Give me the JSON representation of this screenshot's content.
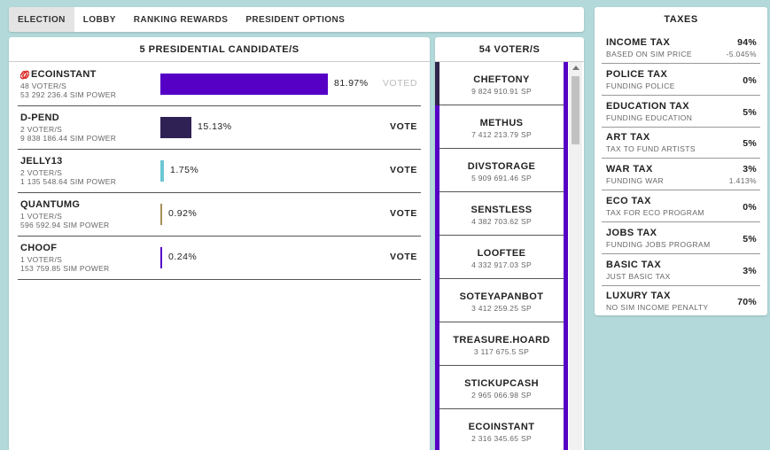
{
  "tabs": [
    {
      "label": "ELECTION",
      "active": true
    },
    {
      "label": "LOBBY",
      "active": false
    },
    {
      "label": "RANKING REWARDS",
      "active": false
    },
    {
      "label": "PRESIDENT OPTIONS",
      "active": false
    }
  ],
  "candidates": {
    "header": "5 PRESIDENTIAL CANDIDATE/S",
    "items": [
      {
        "name": "ECOINSTANT",
        "voters": "48 VOTER/S",
        "power": "53 292 236.4 SIM POWER",
        "percent_label": "81.97%",
        "share": 0.8197,
        "color": "#5600c6",
        "action": "VOTED",
        "voted": true,
        "icon": "pin-icon"
      },
      {
        "name": "D-PEND",
        "voters": "2 VOTER/S",
        "power": "9 838 186.44 SIM POWER",
        "percent_label": "15.13%",
        "share": 0.1513,
        "color": "#2f2154",
        "action": "VOTE",
        "voted": false
      },
      {
        "name": "JELLY13",
        "voters": "2 VOTER/S",
        "power": "1 135 548.64 SIM POWER",
        "percent_label": "1.75%",
        "share": 0.0175,
        "color": "#6cc7d3",
        "action": "VOTE",
        "voted": false
      },
      {
        "name": "QUANTUMG",
        "voters": "1 VOTER/S",
        "power": "596 592.94 SIM POWER",
        "percent_label": "0.92%",
        "share": 0.0092,
        "color": "#a58f55",
        "action": "VOTE",
        "voted": false
      },
      {
        "name": "CHOOF",
        "voters": "1 VOTER/S",
        "power": "153 759.85 SIM POWER",
        "percent_label": "0.24%",
        "share": 0.0024,
        "color": "#5600c6",
        "action": "VOTE",
        "voted": false
      }
    ]
  },
  "voters": {
    "header": "54 VOTER/S",
    "items": [
      {
        "name": "CHEFTONY",
        "sp": "9 824 910.91 SP"
      },
      {
        "name": "METHUS",
        "sp": "7 412 213.79 SP"
      },
      {
        "name": "DIVSTORAGE",
        "sp": "5 909 691.46 SP"
      },
      {
        "name": "SENSTLESS",
        "sp": "4 382 703.62 SP"
      },
      {
        "name": "LOOFTEE",
        "sp": "4 332 917.03 SP"
      },
      {
        "name": "SOTEYAPANBOT",
        "sp": "3 412 259.25 SP"
      },
      {
        "name": "TREASURE.HOARD",
        "sp": "3 117 675.5 SP"
      },
      {
        "name": "STICKUPCASH",
        "sp": "2 965 066.98 SP"
      },
      {
        "name": "ECOINSTANT",
        "sp": "2 316 345.65 SP"
      }
    ]
  },
  "taxes": {
    "header": "TAXES",
    "items": [
      {
        "name": "INCOME TAX",
        "desc": "BASED ON SIM PRICE",
        "value": "94%",
        "delta": "-5.045%"
      },
      {
        "name": "POLICE TAX",
        "desc": "FUNDING POLICE",
        "value": "0%"
      },
      {
        "name": "EDUCATION TAX",
        "desc": "FUNDING EDUCATION",
        "value": "5%"
      },
      {
        "name": "ART TAX",
        "desc": "TAX TO FUND ARTISTS",
        "value": "5%"
      },
      {
        "name": "WAR TAX",
        "desc": "FUNDING WAR",
        "value": "3%",
        "delta": "1.413%"
      },
      {
        "name": "ECO TAX",
        "desc": "TAX FOR ECO PROGRAM",
        "value": "0%"
      },
      {
        "name": "JOBS TAX",
        "desc": "FUNDING JOBS PROGRAM",
        "value": "5%"
      },
      {
        "name": "BASIC TAX",
        "desc": "JUST BASIC TAX",
        "value": "3%"
      },
      {
        "name": "LUXURY TAX",
        "desc": "NO SIM INCOME PENALTY",
        "value": "70%"
      }
    ]
  }
}
